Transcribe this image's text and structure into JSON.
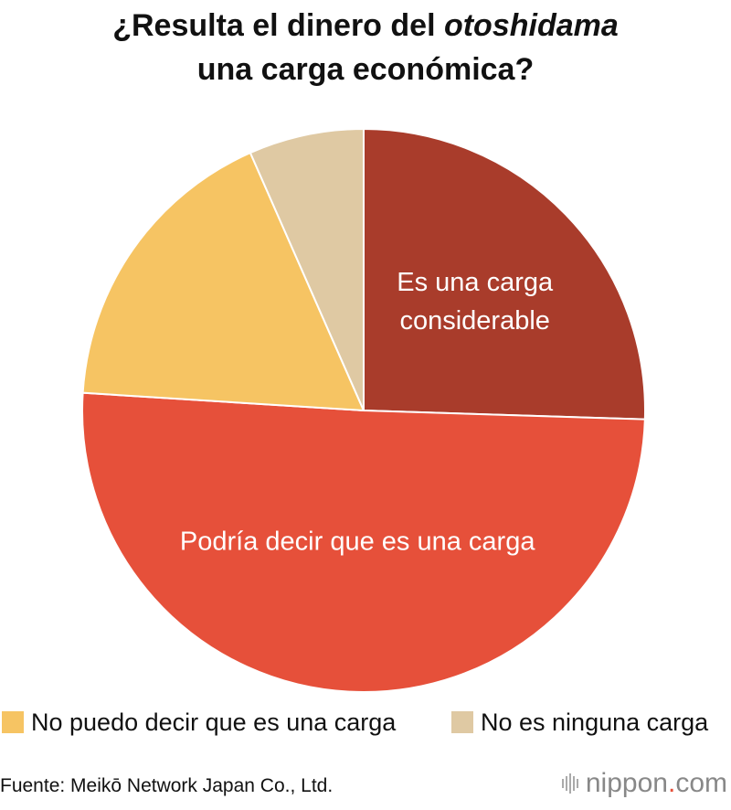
{
  "title": {
    "line1_prefix": "¿Resulta el dinero del ",
    "line1_emphasis": "otoshidama",
    "line2": "una carga económica?"
  },
  "chart_data": {
    "type": "pie",
    "start_angle_deg": 0,
    "direction": "clockwise",
    "slices": [
      {
        "label": "Es una carga considerable",
        "label_lines": [
          "Es una carga",
          "considerable"
        ],
        "value": 25.5,
        "color": "#a93c2b",
        "label_inside": true
      },
      {
        "label": "Podría decir que es una carga",
        "label_lines": [
          "Podría decir que es una carga"
        ],
        "value": 50.5,
        "color": "#e6503a",
        "label_inside": true
      },
      {
        "label": "No puedo decir que es una carga",
        "label_lines": [],
        "value": 17.4,
        "color": "#f6c463",
        "label_inside": false
      },
      {
        "label": "No es ninguna carga",
        "label_lines": [],
        "value": 6.6,
        "color": "#dfc9a3",
        "label_inside": false
      }
    ],
    "legend": [
      {
        "label": "No puedo decir que es una carga",
        "color": "#f6c463"
      },
      {
        "label": "No es ninguna carga",
        "color": "#dfc9a3"
      }
    ]
  },
  "footer": {
    "source": "Fuente: Meikō Network Japan Co., Ltd.",
    "brand_main": "nippon",
    "brand_dot": ".",
    "brand_suffix": "com"
  }
}
